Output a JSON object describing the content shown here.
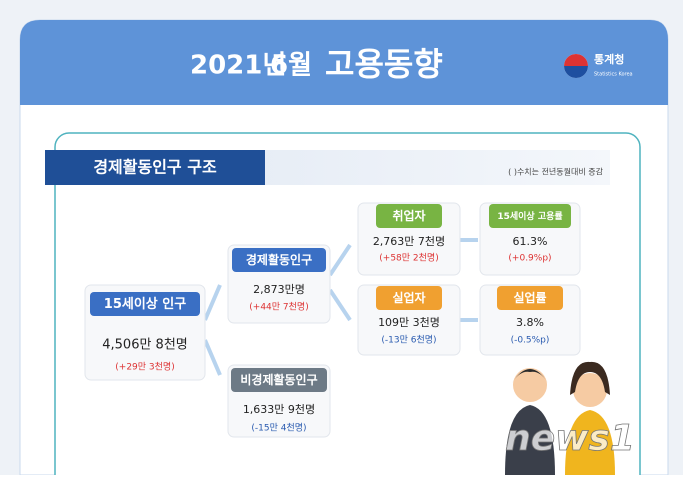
{
  "header": {
    "year": "2021년",
    "month": "6월",
    "title": "고용동향",
    "logo": "통계청",
    "logo_sub": "Statistics Korea"
  },
  "section": {
    "title": "경제활동인구 구조",
    "note": "( )수치는 전년동월대비 증감"
  },
  "nodes": [
    {
      "label": "15세이상 인구",
      "value": "4,506만 8천명",
      "change": "(+29만 3천명)"
    },
    {
      "label": "경제활동인구",
      "value": "2,873만명",
      "change": "(+44만 7천명)"
    },
    {
      "label": "비경제활동인구",
      "value": "1,633만 9천명",
      "change": "(-15만 4천명)"
    },
    {
      "label": "취업자",
      "value": "2,763만 7천명",
      "change": "(+58만 2천명)"
    },
    {
      "label": "15세이상 고용률",
      "value": "61.3%",
      "change": "(+0.9%p)"
    },
    {
      "label": "실업자",
      "value": "109만 3천명",
      "change": "(-13만 6천명)"
    },
    {
      "label": "실업률",
      "value": "3.8%",
      "change": "(-0.5%p)"
    }
  ],
  "watermark": "news1"
}
